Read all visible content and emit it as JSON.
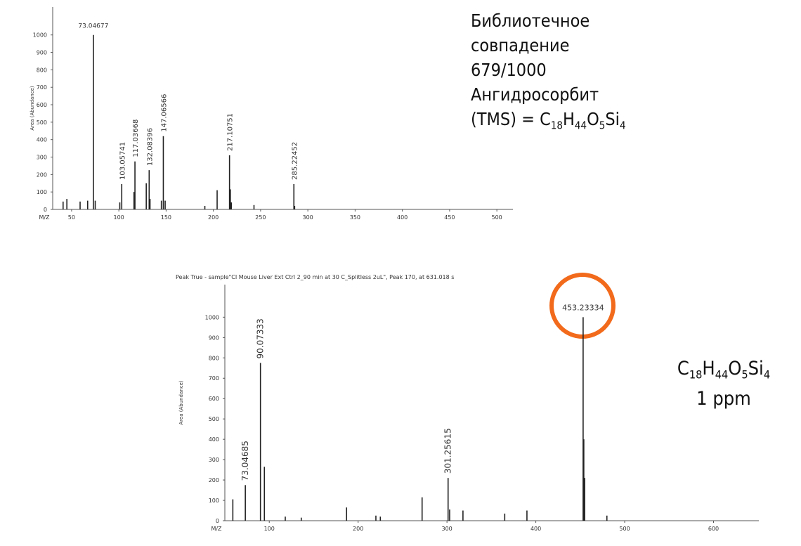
{
  "chart_data": [
    {
      "type": "stick",
      "xlabel": "M/Z",
      "ylabel": "Area (Abundance)",
      "color": "#222222",
      "xlim": [
        30,
        517
      ],
      "ylim": [
        0,
        1160
      ],
      "xticks": [
        50,
        100,
        150,
        200,
        250,
        300,
        350,
        400,
        450,
        500
      ],
      "yticks": [
        0,
        100,
        200,
        300,
        400,
        500,
        600,
        700,
        800,
        900,
        1000
      ],
      "x": [
        41,
        45,
        59,
        67,
        73.04677,
        75,
        101,
        103.05741,
        116,
        117.03668,
        129,
        132.08396,
        133,
        145,
        147.06566,
        149,
        191,
        204,
        217.10751,
        218,
        219,
        243,
        285.22452,
        286
      ],
      "values": [
        45,
        60,
        45,
        50,
        1000,
        50,
        40,
        145,
        100,
        275,
        150,
        225,
        60,
        50,
        420,
        50,
        20,
        110,
        310,
        115,
        40,
        25,
        145,
        20
      ],
      "peak_labels": [
        null,
        null,
        null,
        null,
        "73.04677",
        null,
        null,
        "103.05741",
        null,
        "117.03668",
        null,
        "132.08396",
        null,
        null,
        "147.06566",
        null,
        null,
        null,
        "217.10751",
        null,
        null,
        null,
        "285.22452",
        null
      ]
    },
    {
      "type": "stick",
      "title": "Peak True - sample\"CI Mouse Liver Ext Ctrl 2_90 min at 30 C_Splitless 2uL\", Peak  170, at 631.018 s",
      "xlabel": "M/Z",
      "ylabel": "Area (Abundance)",
      "color": "#222222",
      "xlim": [
        50,
        651
      ],
      "ylim": [
        0,
        1160
      ],
      "xticks": [
        100,
        200,
        300,
        400,
        500,
        600
      ],
      "yticks": [
        0,
        100,
        200,
        300,
        400,
        500,
        600,
        700,
        800,
        900,
        1000
      ],
      "x": [
        59,
        73.04685,
        90.07333,
        94.5,
        118,
        136,
        187,
        220,
        225,
        272,
        301.25615,
        303,
        318,
        365,
        390,
        453.23334,
        454,
        455,
        480
      ],
      "values": [
        105,
        175,
        775,
        265,
        20,
        15,
        65,
        25,
        20,
        115,
        210,
        55,
        50,
        35,
        50,
        1000,
        400,
        210,
        25
      ],
      "peak_labels": [
        null,
        "73.04685",
        "90.07333",
        null,
        null,
        null,
        null,
        null,
        null,
        null,
        "301.25615",
        null,
        null,
        null,
        null,
        "453.23334",
        null,
        null,
        null
      ]
    }
  ],
  "annotations": {
    "library": {
      "lines": [
        "Библиотечное",
        "совпадение",
        "679/1000",
        "Ангидросорбит"
      ],
      "prefix": "(TMS) = ",
      "formula": [
        {
          "element": "C",
          "count": 18
        },
        {
          "element": "H",
          "count": 44
        },
        {
          "element": "O",
          "count": 5
        },
        {
          "element": "Si",
          "count": 4
        }
      ]
    },
    "measured": {
      "formula": [
        {
          "element": "C",
          "count": 18
        },
        {
          "element": "H",
          "count": 44
        },
        {
          "element": "O",
          "count": 5
        },
        {
          "element": "Si",
          "count": 4
        }
      ],
      "error": "1 ppm"
    }
  }
}
